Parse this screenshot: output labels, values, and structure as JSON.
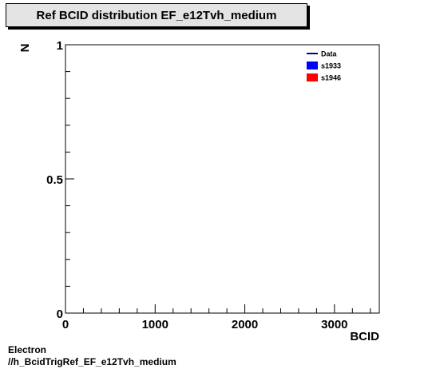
{
  "header": {
    "title": "Ref BCID distribution EF_e12Tvh_medium"
  },
  "footer": {
    "line1": "Electron",
    "line2": "//h_BcidTrigRef_EF_e12Tvh_medium"
  },
  "chart_data": {
    "type": "line",
    "title": "Ref BCID distribution EF_e12Tvh_medium",
    "xlabel": "BCID",
    "ylabel": "N",
    "xlim": [
      0,
      3500
    ],
    "ylim": [
      0,
      1
    ],
    "x_ticks": [
      0,
      1000,
      2000,
      3000
    ],
    "x_tick_labels": [
      "0",
      "1000",
      "2000",
      "3000"
    ],
    "y_ticks": [
      0,
      0.5,
      1
    ],
    "y_tick_labels": [
      "0",
      "0.5",
      "1"
    ],
    "grid": false,
    "legend_position": "top-right",
    "series": [
      {
        "name": "Data",
        "style": "line",
        "color": "#00008b",
        "values": []
      },
      {
        "name": "s1933",
        "style": "fill",
        "color": "#0000ff",
        "values": []
      },
      {
        "name": "s1946",
        "style": "fill",
        "color": "#ff0000",
        "values": []
      }
    ]
  }
}
